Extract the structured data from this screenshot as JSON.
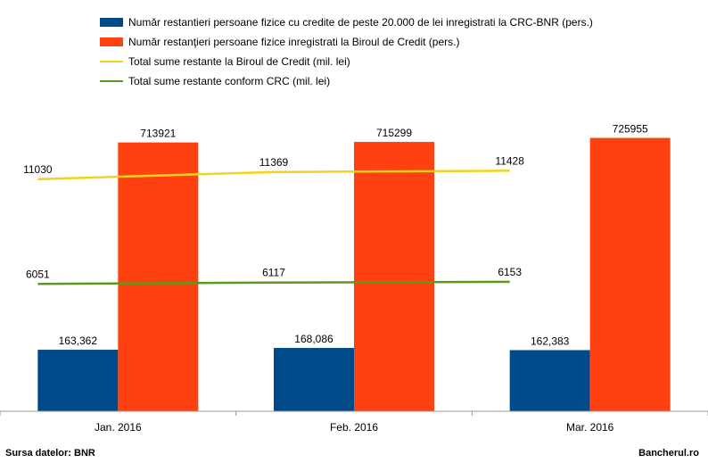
{
  "chart_data": {
    "type": "bar",
    "categories": [
      "Jan. 2016",
      "Feb. 2016",
      "Mar. 2016"
    ],
    "series": [
      {
        "name": "Număr restantieri persoane fizice cu credite de peste 20.000 de lei inregistrati la CRC-BNR (pers.)",
        "kind": "bar",
        "color": "#004a8a",
        "axis": "left",
        "values": [
          163362,
          168086,
          162383
        ],
        "labels": [
          "163,362",
          "168,086",
          "162,383"
        ]
      },
      {
        "name": "Număr restanţieri persoane fizice inregistrati la Biroul de Credit (pers.)",
        "kind": "bar",
        "color": "#ff4010",
        "axis": "left",
        "values": [
          713921,
          715299,
          725955
        ],
        "labels": [
          "713921",
          "715299",
          "725955"
        ]
      },
      {
        "name": "Total sume restante la Biroul de Credit (mil. lei)",
        "kind": "line",
        "color": "#f5d21a",
        "axis": "right",
        "values": [
          11030,
          11369,
          11428
        ],
        "labels": [
          "11030",
          "11369",
          "11428"
        ]
      },
      {
        "name": "Total sume restante conform CRC (mil. lei)",
        "kind": "line",
        "color": "#5a9a1c",
        "axis": "right",
        "values": [
          6051,
          6117,
          6153
        ],
        "labels": [
          "6051",
          "6117",
          "6153"
        ]
      }
    ],
    "ylim_bars": [
      0,
      950000
    ],
    "ylim_lines": [
      0,
      17000
    ],
    "grid": false,
    "legend_position": "top"
  },
  "footer": {
    "source": "Sursa datelor: BNR",
    "brand": "Bancherul.ro"
  }
}
